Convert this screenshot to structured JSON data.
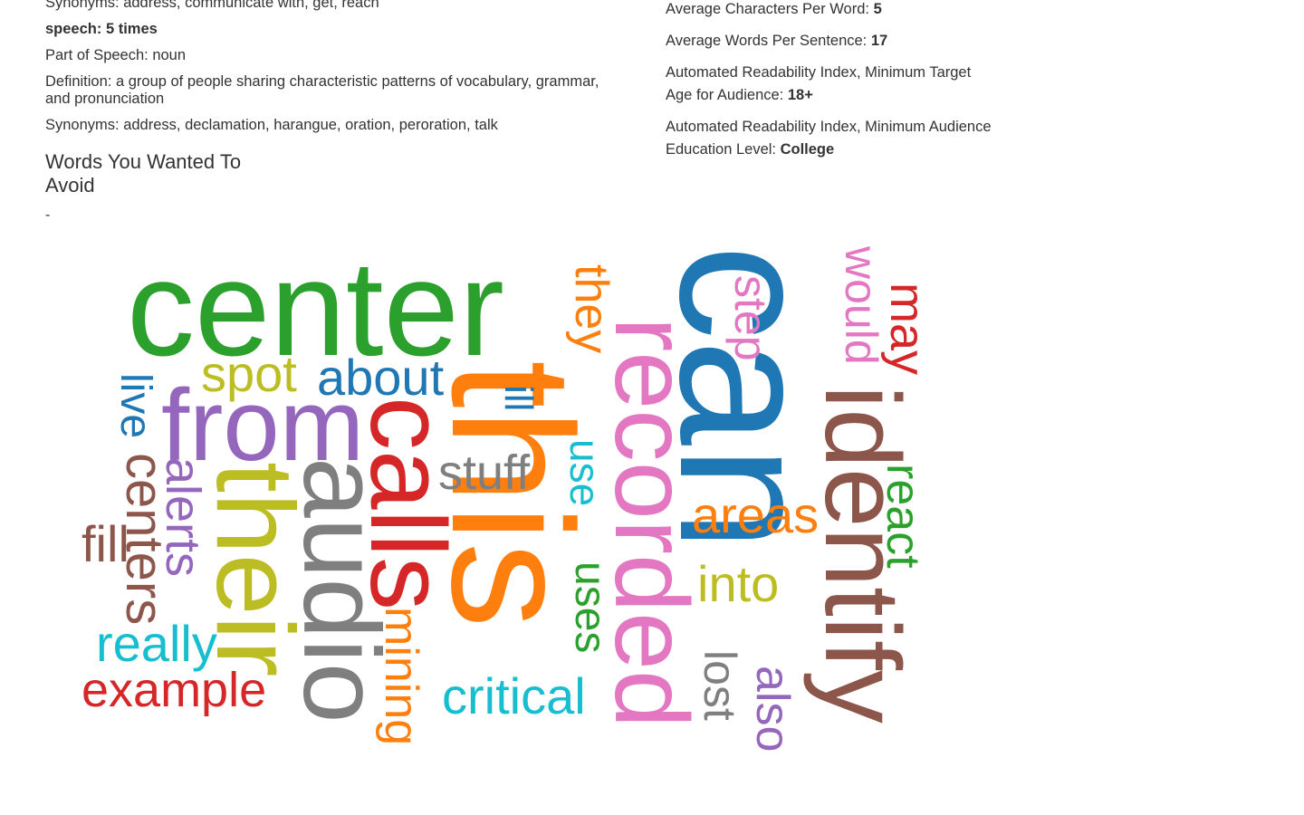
{
  "left": {
    "synonyms_top": "Synonyms: address, communicate with, get, reach",
    "word_count": "speech: 5 times",
    "part_of_speech": "Part of Speech: noun",
    "definition": "Definition: a group of people sharing characteristic patterns of vocabulary, grammar, and pronunciation",
    "synonyms": "Synonyms: address, declamation, harangue, oration, peroration, talk",
    "avoid_title": "Words You Wanted To Avoid",
    "avoid_value": "-"
  },
  "right": {
    "avg_chars_label": "Average Characters Per Word: ",
    "avg_chars_value": "5",
    "avg_words_label": "Average Words Per Sentence: ",
    "avg_words_value": "17",
    "ari_age_label": "Automated Readability Index, Minimum Target Age for Audience: ",
    "ari_age_value": "18+",
    "ari_edu_label": "Automated Readability Index, Minimum Audience Education Level: ",
    "ari_edu_value": "College"
  },
  "cloud": {
    "words": [
      {
        "text": "center",
        "color": "#2ca02c"
      },
      {
        "text": "can",
        "color": "#1f77b4"
      },
      {
        "text": "this",
        "color": "#ff7f0e"
      },
      {
        "text": "recorded",
        "color": "#e377c2"
      },
      {
        "text": "identify",
        "color": "#8c564b"
      },
      {
        "text": "their",
        "color": "#bcbd22"
      },
      {
        "text": "from",
        "color": "#9467bd"
      },
      {
        "text": "calls",
        "color": "#d62728"
      },
      {
        "text": "audio",
        "color": "#7f7f7f"
      },
      {
        "text": "spot",
        "color": "#bcbd22"
      },
      {
        "text": "about",
        "color": "#1f77b4"
      },
      {
        "text": "stuff",
        "color": "#7f7f7f"
      },
      {
        "text": "they",
        "color": "#ff7f0e"
      },
      {
        "text": "step",
        "color": "#e377c2"
      },
      {
        "text": "would",
        "color": "#e377c2"
      },
      {
        "text": "may",
        "color": "#d62728"
      },
      {
        "text": "react",
        "color": "#2ca02c"
      },
      {
        "text": "areas",
        "color": "#ff7f0e"
      },
      {
        "text": "into",
        "color": "#bcbd22"
      },
      {
        "text": "live",
        "color": "#1f77b4"
      },
      {
        "text": "centers",
        "color": "#8c564b"
      },
      {
        "text": "alerts",
        "color": "#9467bd"
      },
      {
        "text": "fill",
        "color": "#8c564b"
      },
      {
        "text": "really",
        "color": "#17becf"
      },
      {
        "text": "example",
        "color": "#d62728"
      },
      {
        "text": "mining",
        "color": "#ff7f0e"
      },
      {
        "text": "critical",
        "color": "#17becf"
      },
      {
        "text": "use",
        "color": "#17becf"
      },
      {
        "text": "uses",
        "color": "#2ca02c"
      },
      {
        "text": "ill",
        "color": "#1f77b4"
      },
      {
        "text": "lost",
        "color": "#7f7f7f"
      },
      {
        "text": "also",
        "color": "#9467bd"
      }
    ]
  }
}
